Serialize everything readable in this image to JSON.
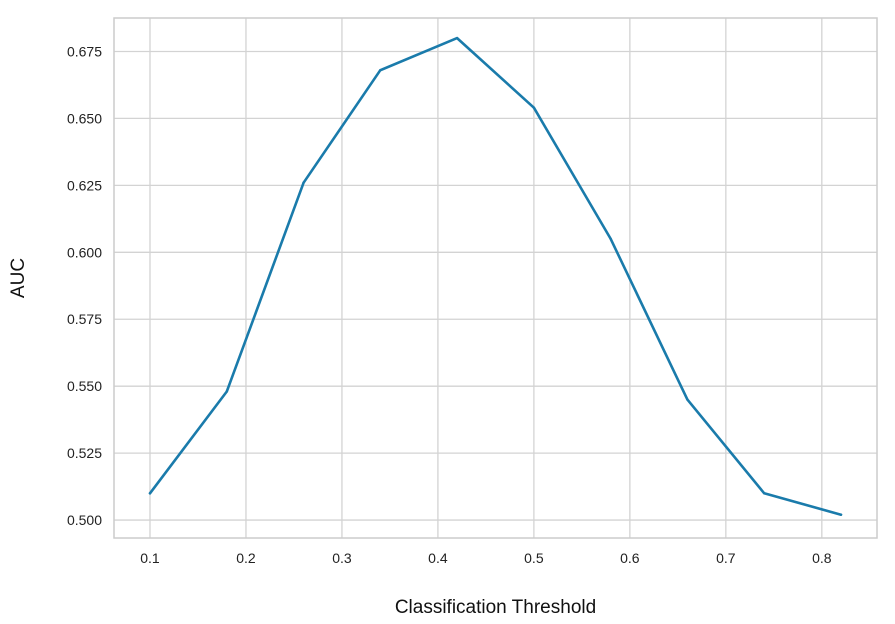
{
  "chart_data": {
    "type": "line",
    "title": "",
    "xlabel": "Classification Threshold",
    "ylabel": "AUC",
    "xlim": [
      0.0625,
      0.8575
    ],
    "ylim": [
      0.4933,
      0.6875
    ],
    "xticks": [
      0.1,
      0.2,
      0.3,
      0.4,
      0.5,
      0.6,
      0.7,
      0.8
    ],
    "xtick_labels": [
      "0.1",
      "0.2",
      "0.3",
      "0.4",
      "0.5",
      "0.6",
      "0.7",
      "0.8"
    ],
    "yticks": [
      0.5,
      0.525,
      0.55,
      0.575,
      0.6,
      0.625,
      0.65,
      0.675
    ],
    "ytick_labels": [
      "0.500",
      "0.525",
      "0.550",
      "0.575",
      "0.600",
      "0.625",
      "0.650",
      "0.675"
    ],
    "grid": true,
    "legend": "none",
    "x": [
      0.1,
      0.18,
      0.26,
      0.34,
      0.42,
      0.5,
      0.58,
      0.66,
      0.74,
      0.82
    ],
    "series": [
      {
        "values": [
          0.51,
          0.548,
          0.626,
          0.668,
          0.68,
          0.654,
          0.605,
          0.545,
          0.51,
          0.502
        ],
        "color": "#1a7bab"
      }
    ],
    "colors": {
      "grid": "#d3d3d3",
      "axes_frame": "#cccccc",
      "background": "#ffffff"
    }
  }
}
